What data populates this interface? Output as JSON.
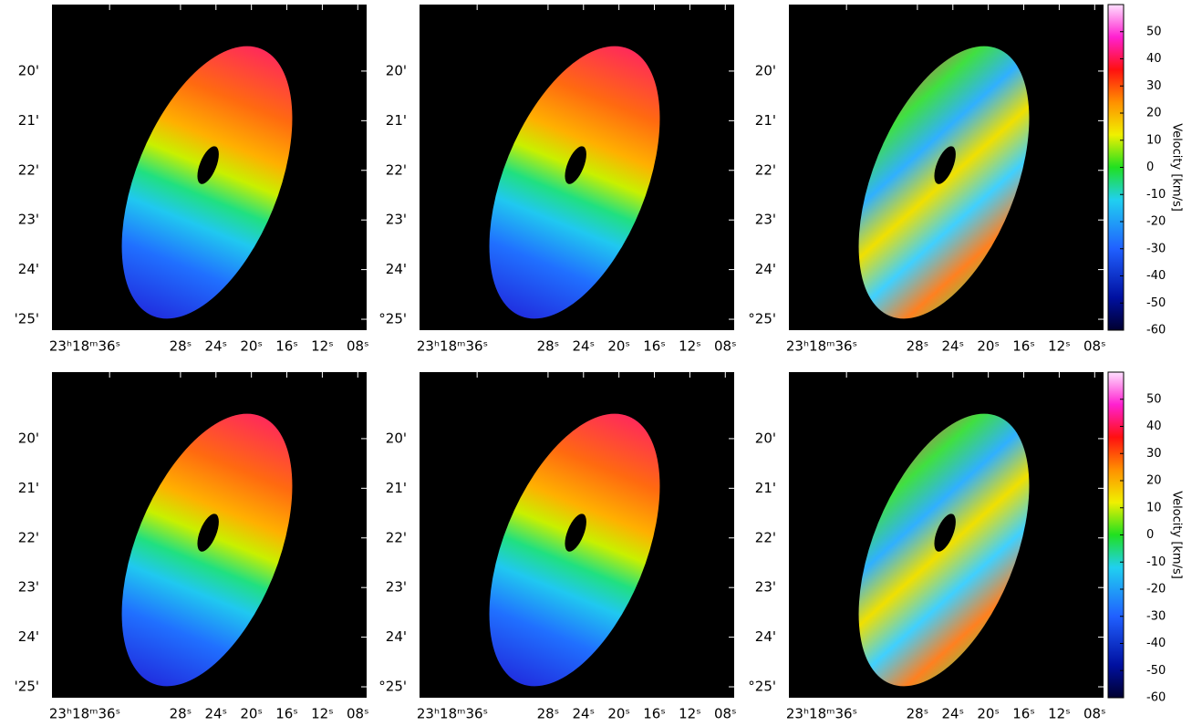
{
  "chart_data": [
    {
      "type": "image",
      "xlim": [
        42.5,
        7
      ],
      "ylim": [
        18.66,
        25.22
      ],
      "xticks": [
        {
          "value": 36,
          "label": "23ʰ18ᵐ36ˢ"
        },
        {
          "value": 28,
          "label": "28ˢ"
        },
        {
          "value": 24,
          "label": "24ˢ"
        },
        {
          "value": 20,
          "label": "20ˢ"
        },
        {
          "value": 16,
          "label": "16ˢ"
        },
        {
          "value": 12,
          "label": "12ˢ"
        },
        {
          "value": 8,
          "label": "08ˢ"
        }
      ],
      "yticks": [
        {
          "value": 20,
          "label": "20'"
        },
        {
          "value": 21,
          "label": "21'"
        },
        {
          "value": 22,
          "label": "22'"
        },
        {
          "value": 23,
          "label": "23'"
        },
        {
          "value": 24,
          "label": "24'"
        },
        {
          "value": 25,
          "label": "'25'"
        }
      ]
    },
    {
      "type": "image",
      "xlim": [
        42.5,
        7
      ],
      "ylim": [
        18.66,
        25.22
      ],
      "xticks": [
        {
          "value": 36,
          "label": "23ʰ18ᵐ36ˢ"
        },
        {
          "value": 28,
          "label": "28ˢ"
        },
        {
          "value": 24,
          "label": "24ˢ"
        },
        {
          "value": 20,
          "label": "20ˢ"
        },
        {
          "value": 16,
          "label": "16ˢ"
        },
        {
          "value": 12,
          "label": "12ˢ"
        },
        {
          "value": 8,
          "label": "08ˢ"
        }
      ],
      "yticks": [
        {
          "value": 20,
          "label": "20'"
        },
        {
          "value": 21,
          "label": "21'"
        },
        {
          "value": 22,
          "label": "22'"
        },
        {
          "value": 23,
          "label": "23'"
        },
        {
          "value": 24,
          "label": "24'"
        },
        {
          "value": 25,
          "label": "°25'"
        }
      ]
    },
    {
      "type": "image",
      "xlim": [
        42.5,
        7
      ],
      "ylim": [
        18.66,
        25.22
      ],
      "xticks": [
        {
          "value": 36,
          "label": "23ʰ18ᵐ36ˢ"
        },
        {
          "value": 28,
          "label": "28ˢ"
        },
        {
          "value": 24,
          "label": "24ˢ"
        },
        {
          "value": 20,
          "label": "20ˢ"
        },
        {
          "value": 16,
          "label": "16ˢ"
        },
        {
          "value": 12,
          "label": "12ˢ"
        },
        {
          "value": 8,
          "label": "08ˢ"
        }
      ],
      "yticks": [
        {
          "value": 20,
          "label": "20'"
        },
        {
          "value": 21,
          "label": "21'"
        },
        {
          "value": 22,
          "label": "22'"
        },
        {
          "value": 23,
          "label": "23'"
        },
        {
          "value": 24,
          "label": "24'"
        },
        {
          "value": 25,
          "label": "°25'"
        }
      ],
      "colorbar": {
        "label": "Velocity [km/s]",
        "lim": [
          -60,
          60
        ],
        "ticks": [
          -60,
          -50,
          -40,
          -30,
          -20,
          -10,
          0,
          10,
          20,
          30,
          40,
          50
        ]
      }
    },
    {
      "type": "image",
      "xlim": [
        42.5,
        7
      ],
      "ylim": [
        18.66,
        25.22
      ],
      "xticks": [
        {
          "value": 36,
          "label": "23ʰ18ᵐ36ˢ"
        },
        {
          "value": 28,
          "label": "28ˢ"
        },
        {
          "value": 24,
          "label": "24ˢ"
        },
        {
          "value": 20,
          "label": "20ˢ"
        },
        {
          "value": 16,
          "label": "16ˢ"
        },
        {
          "value": 12,
          "label": "12ˢ"
        },
        {
          "value": 8,
          "label": "08ˢ"
        }
      ],
      "yticks": [
        {
          "value": 20,
          "label": "20'"
        },
        {
          "value": 21,
          "label": "21'"
        },
        {
          "value": 22,
          "label": "22'"
        },
        {
          "value": 23,
          "label": "23'"
        },
        {
          "value": 24,
          "label": "24'"
        },
        {
          "value": 25,
          "label": "'25'"
        }
      ]
    },
    {
      "type": "image",
      "xlim": [
        42.5,
        7
      ],
      "ylim": [
        18.66,
        25.22
      ],
      "xticks": [
        {
          "value": 36,
          "label": "23ʰ18ᵐ36ˢ"
        },
        {
          "value": 28,
          "label": "28ˢ"
        },
        {
          "value": 24,
          "label": "24ˢ"
        },
        {
          "value": 20,
          "label": "20ˢ"
        },
        {
          "value": 16,
          "label": "16ˢ"
        },
        {
          "value": 12,
          "label": "12ˢ"
        },
        {
          "value": 8,
          "label": "08ˢ"
        }
      ],
      "yticks": [
        {
          "value": 20,
          "label": "20'"
        },
        {
          "value": 21,
          "label": "21'"
        },
        {
          "value": 22,
          "label": "22'"
        },
        {
          "value": 23,
          "label": "23'"
        },
        {
          "value": 24,
          "label": "24'"
        },
        {
          "value": 25,
          "label": "°25'"
        }
      ]
    },
    {
      "type": "image",
      "xlim": [
        42.5,
        7
      ],
      "ylim": [
        18.66,
        25.22
      ],
      "xticks": [
        {
          "value": 36,
          "label": "23ʰ18ᵐ36ˢ"
        },
        {
          "value": 28,
          "label": "28ˢ"
        },
        {
          "value": 24,
          "label": "24ˢ"
        },
        {
          "value": 20,
          "label": "20ˢ"
        },
        {
          "value": 16,
          "label": "16ˢ"
        },
        {
          "value": 12,
          "label": "12ˢ"
        },
        {
          "value": 8,
          "label": "08ˢ"
        }
      ],
      "yticks": [
        {
          "value": 20,
          "label": "20'"
        },
        {
          "value": 21,
          "label": "21'"
        },
        {
          "value": 22,
          "label": "22'"
        },
        {
          "value": 23,
          "label": "23'"
        },
        {
          "value": 24,
          "label": "24'"
        },
        {
          "value": 25,
          "label": "°25'"
        }
      ],
      "colorbar": {
        "label": "Velocity [km/s]",
        "lim": [
          -60,
          60
        ],
        "ticks": [
          -60,
          -50,
          -40,
          -30,
          -20,
          -10,
          0,
          10,
          20,
          30,
          40,
          50
        ]
      }
    }
  ]
}
